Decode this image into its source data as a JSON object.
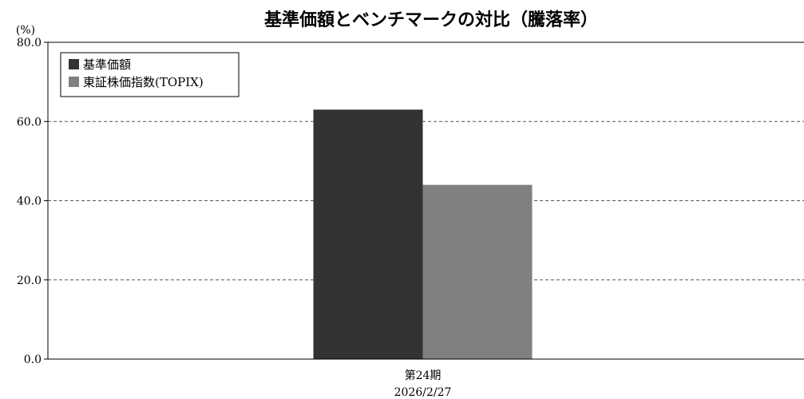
{
  "chart_data": {
    "type": "bar",
    "title": "基準価額とベンチマークの対比（騰落率）",
    "ylabel": "(%)",
    "ylim": [
      0,
      80
    ],
    "yticks": [
      "0.0",
      "20.0",
      "40.0",
      "60.0",
      "80.0"
    ],
    "categories": [
      "第24期"
    ],
    "category_sublabels": [
      "2026/2/27"
    ],
    "series": [
      {
        "name": "基準価額",
        "values": [
          63.0
        ],
        "color": "#333333"
      },
      {
        "name": "東証株価指数(TOPIX)",
        "values": [
          44.0
        ],
        "color": "#808080"
      }
    ],
    "grid": true,
    "legend_position": "top-left"
  }
}
